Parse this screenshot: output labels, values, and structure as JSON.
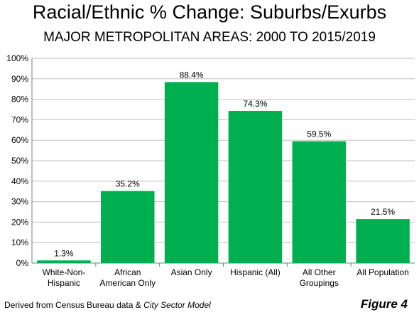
{
  "header": {
    "title": "Racial/Ethnic % Change: Suburbs/Exurbs",
    "subtitle": "MAJOR METROPOLITAN AREAS: 2000 TO 2015/2019"
  },
  "footer": {
    "source_prefix": "Derived from Census Bureau data & ",
    "source_model": "City Sector Model",
    "figure": "Figure 4"
  },
  "chart_data": {
    "type": "bar",
    "title": "Racial/Ethnic % Change: Suburbs/Exurbs",
    "subtitle": "MAJOR METROPOLITAN AREAS: 2000 TO 2015/2019",
    "categories": [
      [
        "White-Non-",
        "Hispanic"
      ],
      [
        "African",
        "American Only"
      ],
      [
        "Asian Only"
      ],
      [
        "Hispanic (All)"
      ],
      [
        "All Other",
        "Groupings"
      ],
      [
        "All Population"
      ]
    ],
    "values": [
      1.3,
      35.2,
      88.4,
      74.3,
      59.5,
      21.5
    ],
    "data_labels": [
      "1.3%",
      "35.2%",
      "88.4%",
      "74.3%",
      "59.5%",
      "21.5%"
    ],
    "yticks": [
      "0%",
      "10%",
      "20%",
      "30%",
      "40%",
      "50%",
      "60%",
      "70%",
      "80%",
      "90%",
      "100%"
    ],
    "ylim": [
      0,
      100
    ],
    "xlabel": "",
    "ylabel": "",
    "bar_color": "#00b050",
    "grid": true
  }
}
